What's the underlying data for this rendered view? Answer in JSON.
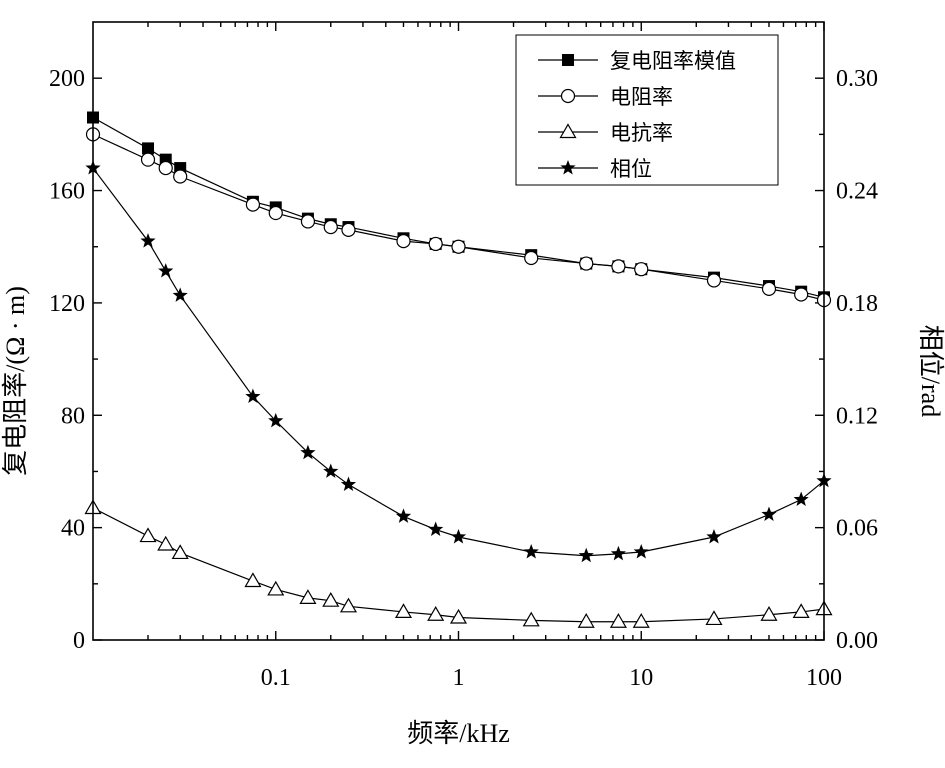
{
  "chart_data": {
    "type": "line",
    "xlabel": "频率/kHz",
    "ylabel_left": "复电阻率/(Ω · m)",
    "ylabel_right": "相位/rad",
    "x_scale": "log",
    "xlim": [
      0.01,
      100
    ],
    "ylim_left": [
      0,
      220
    ],
    "ylim_right": [
      0,
      0.33
    ],
    "x_ticks": [
      0.1,
      1,
      10,
      100
    ],
    "x_tick_labels": [
      "0.1",
      "1",
      "10",
      "100"
    ],
    "y_left_ticks": [
      0,
      40,
      80,
      120,
      160,
      200
    ],
    "y_left_tick_labels": [
      "0",
      "40",
      "80",
      "120",
      "160",
      "200"
    ],
    "y_right_ticks": [
      0,
      0.06,
      0.12,
      0.18,
      0.24,
      0.3
    ],
    "y_right_tick_labels": [
      "0.00",
      "0.06",
      "0.12",
      "0.18",
      "0.24",
      "0.30"
    ],
    "grid": false,
    "legend_position": "top-right",
    "series": [
      {
        "name": "复电阻率模值",
        "marker": "filled-square",
        "axis": "left",
        "x": [
          0.01,
          0.02,
          0.025,
          0.03,
          0.075,
          0.1,
          0.15,
          0.2,
          0.25,
          0.5,
          0.75,
          1,
          2.5,
          5,
          7.5,
          10,
          25,
          50,
          75,
          100
        ],
        "y": [
          186,
          175,
          171,
          168,
          156,
          154,
          150,
          148,
          147,
          143,
          141,
          140,
          137,
          134,
          133,
          132,
          129,
          126,
          124,
          122
        ]
      },
      {
        "name": "电阻率",
        "marker": "open-circle",
        "axis": "left",
        "x": [
          0.01,
          0.02,
          0.025,
          0.03,
          0.075,
          0.1,
          0.15,
          0.2,
          0.25,
          0.5,
          0.75,
          1,
          2.5,
          5,
          7.5,
          10,
          25,
          50,
          75,
          100
        ],
        "y": [
          180,
          171,
          168,
          165,
          155,
          152,
          149,
          147,
          146,
          142,
          141,
          140,
          136,
          134,
          133,
          132,
          128,
          125,
          123,
          121
        ]
      },
      {
        "name": "电抗率",
        "marker": "open-triangle",
        "axis": "left",
        "x": [
          0.01,
          0.02,
          0.025,
          0.03,
          0.075,
          0.1,
          0.15,
          0.2,
          0.25,
          0.5,
          0.75,
          1,
          2.5,
          5,
          7.5,
          10,
          25,
          50,
          75,
          100
        ],
        "y": [
          47,
          37,
          34,
          31,
          21,
          18,
          15,
          14,
          12,
          10,
          9,
          8,
          7,
          6.5,
          6.5,
          6.5,
          7.5,
          9,
          10,
          11
        ]
      },
      {
        "name": "相位",
        "marker": "filled-star",
        "axis": "right",
        "x": [
          0.01,
          0.02,
          0.025,
          0.03,
          0.075,
          0.1,
          0.15,
          0.2,
          0.25,
          0.5,
          0.75,
          1,
          2.5,
          5,
          7.5,
          10,
          25,
          50,
          75,
          100
        ],
        "y": [
          0.252,
          0.213,
          0.197,
          0.184,
          0.13,
          0.117,
          0.1,
          0.09,
          0.083,
          0.066,
          0.059,
          0.055,
          0.047,
          0.045,
          0.046,
          0.047,
          0.055,
          0.067,
          0.075,
          0.085
        ]
      }
    ]
  }
}
